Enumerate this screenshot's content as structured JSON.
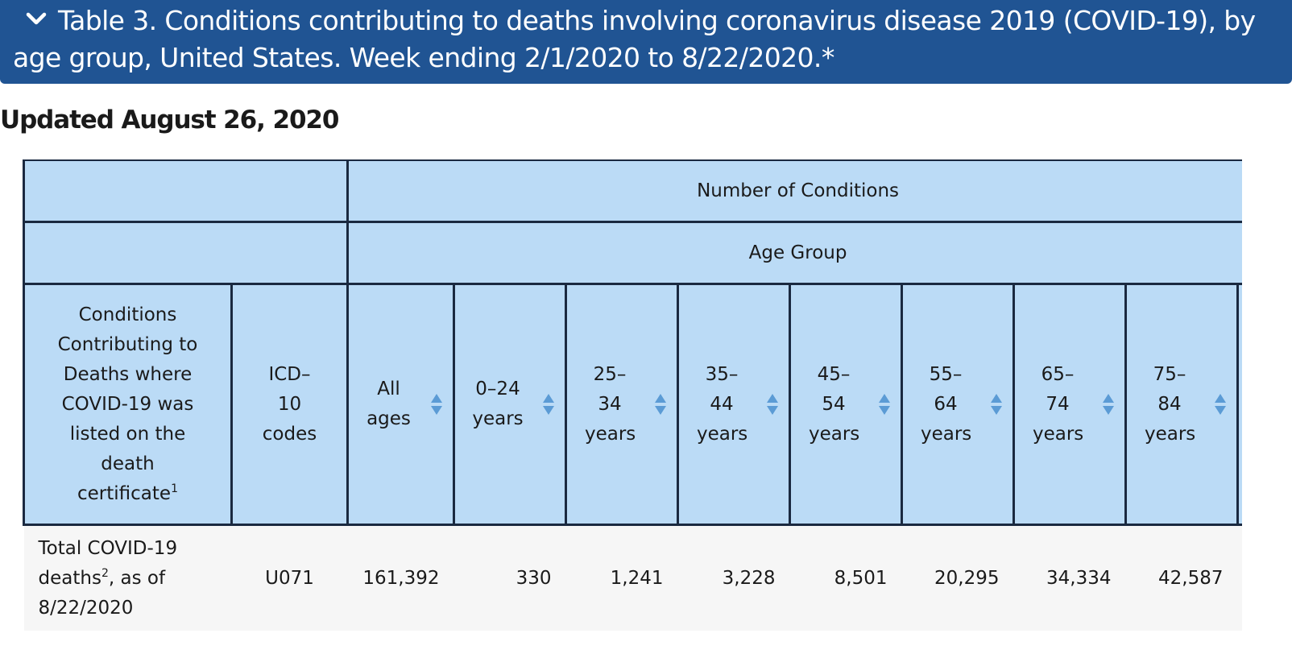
{
  "banner": {
    "title": "Table 3. Conditions contributing to deaths involving coronavirus disease 2019 (COVID-19), by age group, United States. Week ending 2/1/2020 to 8/22/2020.*"
  },
  "updated": "Updated August 26, 2020",
  "table": {
    "group_header": "Number of Conditions",
    "subgroup_header": "Age Group",
    "conditions_header": "Conditions Contributing to Deaths where COVID-19 was listed on the death certificate",
    "conditions_header_sup": "1",
    "icd_header": "ICD–10 codes",
    "age_columns": [
      "All ages",
      "0–24 years",
      "25–34 years",
      "35–44 years",
      "45–54 years",
      "55–64 years",
      "65–74 years",
      "75–84 years"
    ],
    "row": {
      "label_pre": "Total COVID-19 deaths",
      "label_sup": "2",
      "label_post": ", as of 8/22/2020",
      "icd": "U071",
      "values": [
        "161,392",
        "330",
        "1,241",
        "3,228",
        "8,501",
        "20,295",
        "34,334",
        "42,587"
      ]
    }
  },
  "icons": {
    "expand": "chevron-down-icon",
    "sort": "sort-icon"
  },
  "colors": {
    "banner": "#205493",
    "header_bg": "#bbdbf6",
    "row_bg": "#f6f6f6",
    "sort_icon": "#5b9bd5"
  }
}
